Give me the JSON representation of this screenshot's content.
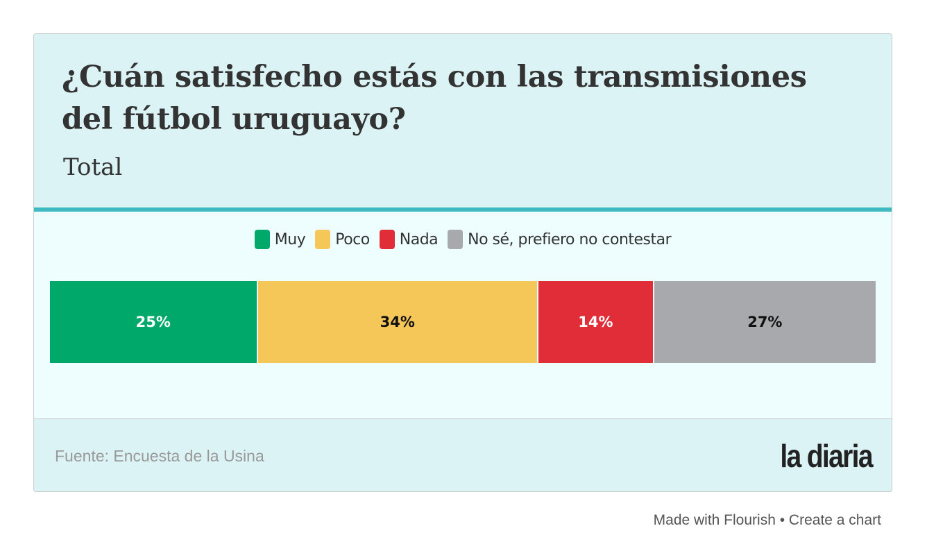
{
  "header": {
    "title": "¿Cuán satisfecho estás con las transmisiones del fútbol uruguayo?",
    "subtitle": "Total"
  },
  "chart_data": {
    "type": "bar",
    "orientation": "horizontal-stacked",
    "title": "¿Cuán satisfecho estás con las transmisiones del fútbol uruguayo?",
    "subtitle": "Total",
    "categories": [
      "Total"
    ],
    "series": [
      {
        "name": "Muy",
        "values": [
          25
        ],
        "label": "25%",
        "color": "#00a96a",
        "label_color": "#ffffff"
      },
      {
        "name": "Poco",
        "values": [
          34
        ],
        "label": "34%",
        "color": "#f5c759",
        "label_color": "#111111"
      },
      {
        "name": "Nada",
        "values": [
          14
        ],
        "label": "14%",
        "color": "#e12d38",
        "label_color": "#ffffff"
      },
      {
        "name": "No sé, prefiero no contestar",
        "values": [
          27
        ],
        "label": "27%",
        "color": "#a7a9ad",
        "label_color": "#111111"
      }
    ],
    "xlim": [
      0,
      100
    ],
    "legend": "top-center",
    "grid": false
  },
  "footer": {
    "source": "Fuente: Encuesta de la Usina",
    "logo": "la diaria"
  },
  "credit": {
    "made_with": "Made with Flourish",
    "separator": "•",
    "create": "Create a chart"
  }
}
